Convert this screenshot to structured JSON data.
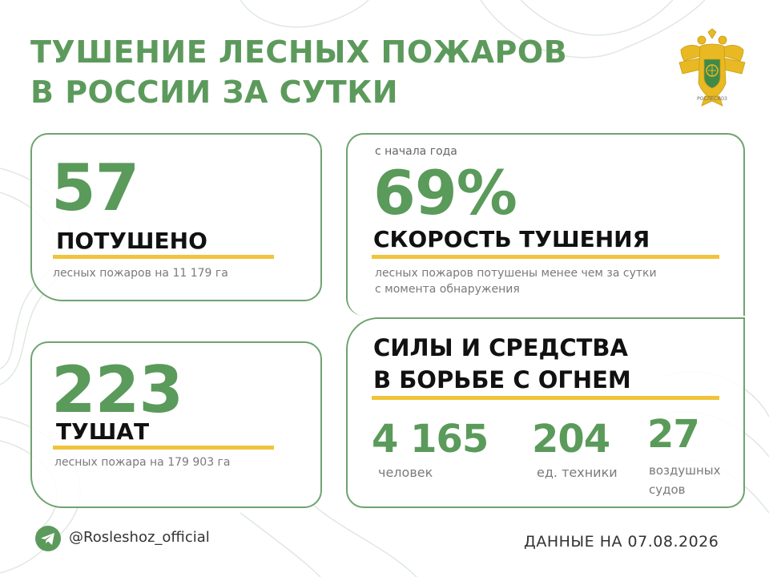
{
  "title": {
    "line1": "ТУШЕНИЕ ЛЕСНЫХ ПОЖАРОВ",
    "line2": "В РОССИИ ЗА СУТКИ"
  },
  "emblem": {
    "icon": "double-headed-eagle-emblem-icon",
    "label": "РОСЛЕСХОЗ"
  },
  "extinguished": {
    "value": "57",
    "label": "ПОТУШЕНО",
    "note": "лесных пожаров на 11 179 га"
  },
  "in_progress": {
    "value": "223",
    "label": "ТУШАТ",
    "note": "лесных пожара на 179 903 га"
  },
  "speed": {
    "caption": "с начала года",
    "value": "69%",
    "label": "СКОРОСТЬ ТУШЕНИЯ",
    "note_line1": "лесных пожаров потушены менее чем за сутки",
    "note_line2": "с момента обнаружения"
  },
  "forces": {
    "title_line1": "СИЛЫ И СРЕДСТВА",
    "title_line2": "В БОРЬБЕ С ОГНЕМ",
    "people_value": "4 165",
    "people_label": "человек",
    "vehicles_value": "204",
    "vehicles_label": "ед. техники",
    "aircraft_value": "27",
    "aircraft_label_line1": "воздушных",
    "aircraft_label_line2": "судов"
  },
  "footer": {
    "telegram_icon": "telegram-icon",
    "handle": "@Rosleshoz_official",
    "date_text": "ДАННЫЕ НА 07.08.2026"
  },
  "colors": {
    "accent_green": "#5c9a5c",
    "underline_yellow": "#f0c43a",
    "card_border": "#6fa36f"
  }
}
